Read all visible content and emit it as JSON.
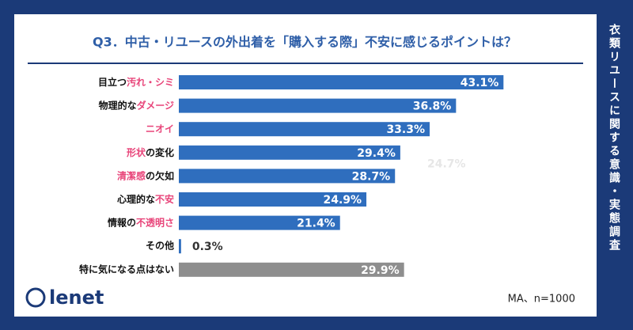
{
  "survey_title": "衣類リユースに関する意識・実態調査",
  "logo": "lenet",
  "chart_data": {
    "type": "hbar",
    "title": "Q3．中古・リユースの外出着を「購入する際」不安に感じるポイントは？",
    "categories": [
      "目立つ汚れ・シミ",
      "物理的なダメージ",
      "ニオイ",
      "形状の変化",
      "清潔感の欠如",
      "心理的な不安",
      "情報の不透明さ",
      "その他",
      "特に気になる点はない"
    ],
    "highlight": [
      "汚れ・シミ",
      "ダメージ",
      "ニオイ",
      "形状",
      "清潔感",
      "不安",
      "不透明さ",
      null,
      null
    ],
    "values": [
      43.1,
      36.8,
      33.3,
      29.4,
      28.7,
      24.9,
      21.4,
      0.3,
      29.9
    ],
    "value_labels": [
      "43.1%",
      "36.8%",
      "33.3%",
      "29.4%",
      "28.7%",
      "24.9%",
      "21.4%",
      "0.3%",
      "29.9%"
    ],
    "colors": [
      "#2f6ebe",
      "#2f6ebe",
      "#2f6ebe",
      "#2f6ebe",
      "#2f6ebe",
      "#2f6ebe",
      "#2f6ebe",
      "#2f6ebe",
      "#8e8e8e"
    ],
    "highlight_color": "#e8457a",
    "xlim": [
      0,
      50
    ],
    "annotations": [
      "24.7%"
    ],
    "note": "MA、n=1000"
  }
}
